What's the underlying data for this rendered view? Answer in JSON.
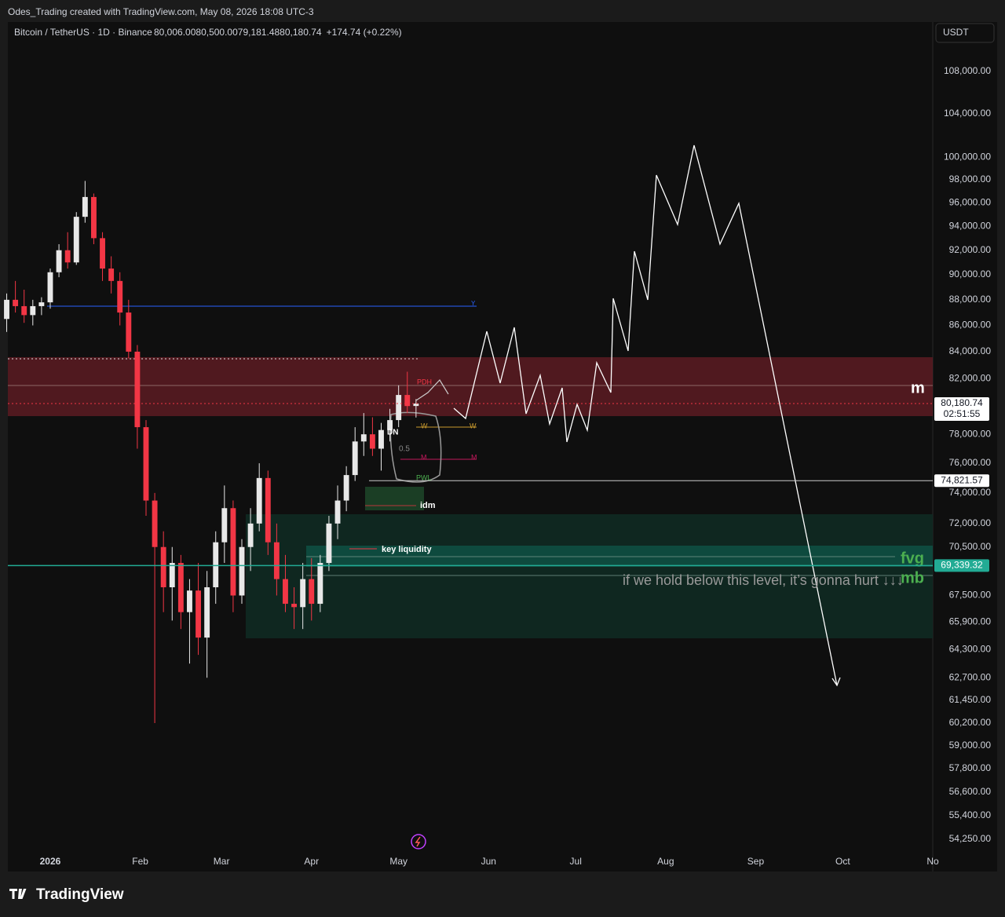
{
  "header": "Odes_Trading created with TradingView.com, May 08, 2026 18:08 UTC-3",
  "footer": "TradingView",
  "chart_data": {
    "type": "candlestick",
    "symbol": "Bitcoin / TetherUS · 1D · Binance",
    "ohlc_legend": {
      "O": "80,006.00",
      "H": "80,500.00",
      "L": "79,181.48",
      "C": "80,180.74",
      "change": "+174.74 (+0.22%)"
    },
    "currency": "USDT",
    "log_scale": true,
    "up_color": "#e8e8e8",
    "down_color": "#f23645",
    "xlim": [
      -14.6,
      304
    ],
    "xticks": [
      {
        "value": 0,
        "label": "2026"
      },
      {
        "value": 31,
        "label": "Feb"
      },
      {
        "value": 59,
        "label": "Mar"
      },
      {
        "value": 90,
        "label": "Apr"
      },
      {
        "value": 120,
        "label": "May"
      },
      {
        "value": 151,
        "label": "Jun"
      },
      {
        "value": 181,
        "label": "Jul"
      },
      {
        "value": 212,
        "label": "Aug"
      },
      {
        "value": 243,
        "label": "Sep"
      },
      {
        "value": 273,
        "label": "Oct"
      },
      {
        "value": 304,
        "label": "No"
      }
    ],
    "ylim": [
      52700,
      112900
    ],
    "yticks": [
      {
        "value": 108000,
        "label": "108,000.00"
      },
      {
        "value": 104000,
        "label": "104,000.00"
      },
      {
        "value": 100000,
        "label": "100,000.00"
      },
      {
        "value": 98000,
        "label": "98,000.00"
      },
      {
        "value": 96000,
        "label": "96,000.00"
      },
      {
        "value": 94000,
        "label": "94,000.00"
      },
      {
        "value": 92000,
        "label": "92,000.00"
      },
      {
        "value": 90000,
        "label": "90,000.00"
      },
      {
        "value": 88000,
        "label": "88,000.00"
      },
      {
        "value": 86000,
        "label": "86,000.00"
      },
      {
        "value": 84000,
        "label": "84,000.00"
      },
      {
        "value": 82000,
        "label": "82,000.00"
      },
      {
        "value": 78000,
        "label": "78,000.00"
      },
      {
        "value": 76000,
        "label": "76,000.00"
      },
      {
        "value": 74000,
        "label": "74,000.00"
      },
      {
        "value": 72000,
        "label": "72,000.00"
      },
      {
        "value": 70500,
        "label": "70,500.00"
      },
      {
        "value": 67500,
        "label": "67,500.00"
      },
      {
        "value": 65900,
        "label": "65,900.00"
      },
      {
        "value": 64300,
        "label": "64,300.00"
      },
      {
        "value": 62700,
        "label": "62,700.00"
      },
      {
        "value": 61450,
        "label": "61,450.00"
      },
      {
        "value": 60200,
        "label": "60,200.00"
      },
      {
        "value": 59000,
        "label": "59,000.00"
      },
      {
        "value": 57800,
        "label": "57,800.00"
      },
      {
        "value": 56600,
        "label": "56,600.00"
      },
      {
        "value": 55400,
        "label": "55,400.00"
      },
      {
        "value": 54250,
        "label": "54,250.00"
      }
    ],
    "x": [
      -15,
      -12,
      -9,
      -6,
      -3,
      0,
      3,
      6,
      9,
      12,
      15,
      18,
      21,
      24,
      27,
      30,
      33,
      36,
      39,
      42,
      45,
      48,
      51,
      54,
      57,
      60,
      63,
      66,
      69,
      72,
      75,
      78,
      81,
      84,
      87,
      90,
      93,
      96,
      99,
      102,
      105,
      108,
      111,
      114,
      117,
      120,
      123,
      126
    ],
    "open": [
      86500,
      88000,
      87500,
      86800,
      87500,
      87800,
      90200,
      92000,
      91000,
      94800,
      96500,
      93000,
      90500,
      89500,
      87000,
      84000,
      78500,
      73500,
      70500,
      68000,
      69500,
      66500,
      67800,
      65000,
      68000,
      70800,
      73000,
      67500,
      70500,
      72000,
      75000,
      70800,
      68500,
      67000,
      66800,
      68500,
      67000,
      69500,
      72000,
      73500,
      75200,
      77500,
      78000,
      77000,
      78300,
      79000,
      80800,
      80006
    ],
    "high": [
      88500,
      89500,
      88800,
      88000,
      88200,
      90500,
      92500,
      93500,
      95200,
      97900,
      96800,
      93500,
      91500,
      90200,
      88000,
      84500,
      79000,
      74000,
      71500,
      70500,
      70000,
      68500,
      69500,
      69000,
      71500,
      74500,
      73500,
      71000,
      73000,
      76000,
      75500,
      72000,
      70000,
      68000,
      69500,
      69800,
      70000,
      72500,
      74500,
      75800,
      78500,
      79500,
      79200,
      78800,
      79800,
      81500,
      82500,
      80500
    ],
    "low": [
      85500,
      87000,
      86200,
      86000,
      86800,
      87300,
      89800,
      90500,
      90800,
      94300,
      92500,
      89500,
      88500,
      86000,
      83500,
      77000,
      72500,
      60200,
      66500,
      66000,
      65500,
      63500,
      64000,
      62700,
      67000,
      69500,
      66500,
      67000,
      69000,
      71500,
      70000,
      67500,
      66500,
      65500,
      65500,
      66000,
      66500,
      69000,
      71000,
      72800,
      74800,
      76500,
      76500,
      75500,
      77500,
      78500,
      79500,
      79181.48
    ],
    "close": [
      88000,
      87500,
      86800,
      87500,
      87800,
      90200,
      92000,
      91000,
      94800,
      96500,
      93000,
      90500,
      89500,
      87000,
      84000,
      78500,
      73500,
      70500,
      68000,
      69500,
      66500,
      67800,
      65000,
      68000,
      70800,
      73000,
      67500,
      70500,
      72000,
      75000,
      70800,
      68500,
      67000,
      66800,
      68500,
      67000,
      69500,
      72000,
      73500,
      75200,
      77500,
      78000,
      77000,
      78300,
      79000,
      80800,
      80000,
      80180.74
    ],
    "price_labels": [
      {
        "value": 80180.74,
        "label": "80,180.74",
        "countdown": "02:51:55"
      },
      {
        "value": 74821.57,
        "label": "74,821.57"
      },
      {
        "value": 69339.32,
        "label": "69,339.32"
      }
    ],
    "annotations": {
      "m": "m",
      "fvg": "fvg",
      "mb": "mb",
      "hurt": "if we hold below this level, it’s gonna hurt ↓↓↓",
      "key_liquidity": "key liquidity",
      "idm": "idm",
      "y": "Y",
      "pdh": "PDH",
      "w1": "W",
      "w2": "W",
      "m1": "M",
      "m2": "M",
      "pwl": "PWL",
      "half": "0.5",
      "dn": "DN"
    }
  }
}
